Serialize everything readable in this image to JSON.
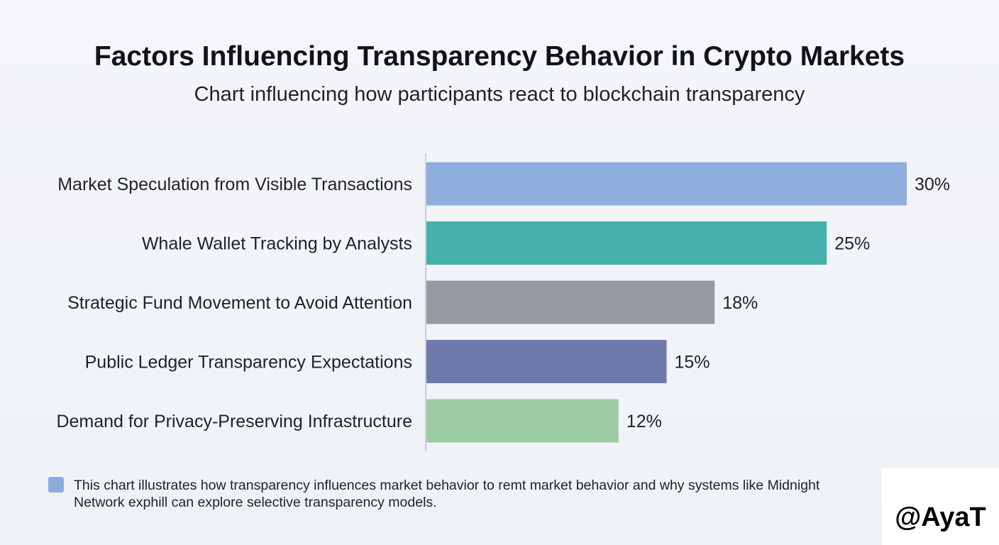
{
  "chart_data": {
    "type": "bar",
    "orientation": "horizontal",
    "title": "Factors Influencing Transparency Behavior in Crypto Markets",
    "subtitle": "Chart influencing how participants react to blockchain transparency",
    "categories": [
      "Market Speculation from Visible Transactions",
      "Whale Wallet Tracking by Analysts",
      "Strategic Fund Movement to Avoid Attention",
      "Public Ledger Transparency Expectations",
      "Demand for Privacy-Preserving Infrastructure"
    ],
    "values": [
      30,
      25,
      18,
      15,
      12
    ],
    "value_labels": [
      "30%",
      "25%",
      "18%",
      "15%",
      "12%"
    ],
    "colors": [
      "#8eaede",
      "#46b0aa",
      "#9599a1",
      "#6e79ab",
      "#9dcca4"
    ],
    "xlim": [
      0,
      30
    ],
    "xlabel": "",
    "ylabel": "",
    "grid": false
  },
  "note": {
    "swatch_color": "#8eabde",
    "text": "This chart illustrates how transparency influences market behavior to remt market behavior and why systems like Midnight Network exphill can explore selective transparency models."
  },
  "watermark": {
    "text": "@AyaT"
  }
}
